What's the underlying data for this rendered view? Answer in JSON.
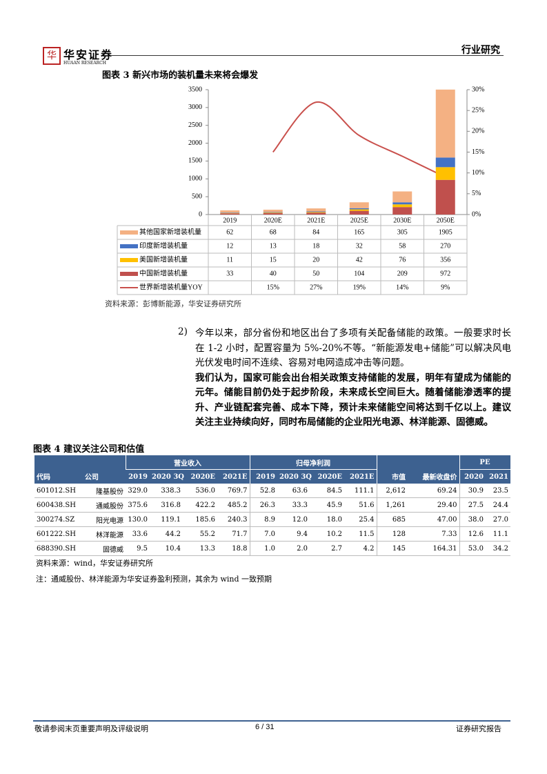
{
  "header": {
    "logo_cn": "华安证券",
    "logo_en": "HUAAN RESEARCH",
    "section": "行业研究"
  },
  "chart_data": {
    "type": "bar",
    "stacked": true,
    "title": "图表 3 新兴市场的装机量未来将会爆发",
    "categories": [
      "2019",
      "2020E",
      "2021E",
      "2025E",
      "2030E",
      "2050E"
    ],
    "series": [
      {
        "name": "其他国家新增装机量",
        "color": "#f4b183",
        "values": [
          62,
          68,
          84,
          165,
          305,
          1905
        ]
      },
      {
        "name": "印度新增装机量",
        "color": "#4472c4",
        "values": [
          12,
          13,
          18,
          32,
          58,
          270
        ]
      },
      {
        "name": "美国新增装机量",
        "color": "#ffc000",
        "values": [
          11,
          15,
          20,
          42,
          76,
          356
        ]
      },
      {
        "name": "中国新增装机量",
        "color": "#c0504d",
        "values": [
          33,
          40,
          50,
          104,
          209,
          972
        ]
      },
      {
        "name": "世界新增装机量YOY",
        "type": "line",
        "axis": "y2",
        "color": "#c9504c",
        "values": [
          null,
          15,
          27,
          19,
          14,
          9
        ],
        "value_labels": [
          null,
          "15%",
          "27%",
          "19%",
          "14%",
          "9%"
        ]
      }
    ],
    "ylim": [
      0,
      3500
    ],
    "yticks": [
      0,
      500,
      1000,
      1500,
      2000,
      2500,
      3000,
      3500
    ],
    "y2lim": [
      0,
      30
    ],
    "y2ticks": [
      {
        "value": 0,
        "label": "0%"
      },
      {
        "value": 5,
        "label": "5%"
      },
      {
        "value": 10,
        "label": "10%"
      },
      {
        "value": 15,
        "label": "15%"
      },
      {
        "value": 20,
        "label": "20%"
      },
      {
        "value": 25,
        "label": "25%"
      },
      {
        "value": 30,
        "label": "30%"
      }
    ],
    "source": "资料来源：彭博新能源，华安证券研究所"
  },
  "paragraph": {
    "number": "2)",
    "text": "今年以来，部分省份和地区出台了多项有关配备储能的政策。一般要求时长在 1-2 小时，配置容量为 5%-20%不等。“新能源发电+储能”可以解决风电光伏发电时间不连续、容易对电网造成冲击等问题。",
    "bold_text": "我们认为，国家可能会出台相关政策支持储能的发展，明年有望成为储能的元年。储能目前仍处于起步阶段，未来成长空间巨大。随着储能渗透率的提升、产业链配套完善、成本下降，预计未来储能空间将达到千亿以上。建议关注主业持续向好，同时布局储能的企业阳光电源、林洋能源、固德威。"
  },
  "table": {
    "title": "图表 4 建议关注公司和估值",
    "group_headers": [
      "营业收入",
      "归母净利润",
      "PE"
    ],
    "columns": [
      "代码",
      "公司",
      "2019",
      "2020 3Q",
      "2020E",
      "2021E",
      "2019",
      "2020 3Q",
      "2020E",
      "2021E",
      "市值",
      "最新收盘价",
      "2020",
      "2021"
    ],
    "rows": [
      [
        "601012.SH",
        "隆基股份",
        "329.0",
        "338.3",
        "536.0",
        "769.7",
        "52.8",
        "63.6",
        "84.5",
        "111.1",
        "2,612",
        "69.24",
        "30.9",
        "23.5"
      ],
      [
        "600438.SH",
        "通威股份",
        "375.6",
        "316.8",
        "422.2",
        "485.2",
        "26.3",
        "33.3",
        "45.9",
        "51.6",
        "1,261",
        "29.40",
        "27.5",
        "24.4"
      ],
      [
        "300274.SZ",
        "阳光电源",
        "130.0",
        "119.1",
        "185.6",
        "240.3",
        "8.9",
        "12.0",
        "18.0",
        "25.4",
        "685",
        "47.00",
        "38.0",
        "27.0"
      ],
      [
        "601222.SH",
        "林洋能源",
        "33.6",
        "44.2",
        "55.2",
        "71.7",
        "7.0",
        "9.4",
        "10.2",
        "11.5",
        "128",
        "7.33",
        "12.6",
        "11.1"
      ],
      [
        "688390.SH",
        "固德威",
        "9.5",
        "10.4",
        "13.3",
        "18.8",
        "1.0",
        "2.0",
        "2.7",
        "4.2",
        "145",
        "164.31",
        "53.0",
        "34.2"
      ]
    ],
    "source": "资料来源：wind，华安证券研究所",
    "note": "注：通威股份、林洋能源为华安证券盈利预测，其余为 wind 一致预期"
  },
  "footer": {
    "disclaimer": "敬请参阅末页重要声明及评级说明",
    "page": "6 / 31",
    "label": "证券研究报告"
  }
}
